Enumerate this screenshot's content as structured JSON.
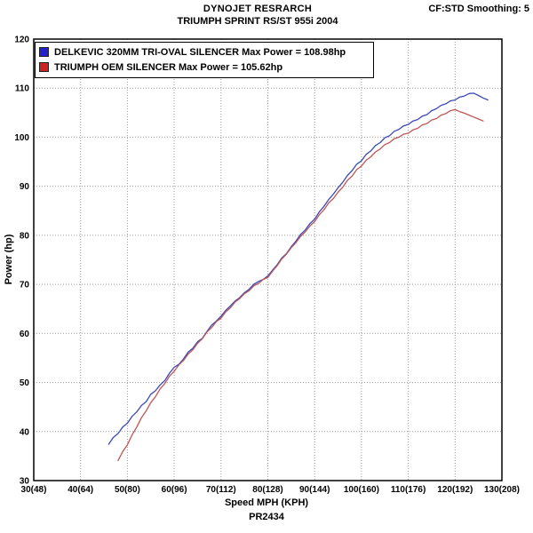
{
  "header": {
    "title_line1": "DYNOJET RESRARCH",
    "title_line2": "TRIUMPH SPRINT RS/ST 955i 2004",
    "smoothing_label": "CF:STD Smoothing: 5"
  },
  "footer": {
    "xaxis_title": "Speed MPH (KPH)",
    "run_id": "PR2434"
  },
  "chart_data": {
    "type": "line",
    "title": "TRIUMPH SPRINT RS/ST 955i 2004",
    "xlabel": "Speed MPH (KPH)",
    "ylabel": "Power (hp)",
    "xlim": [
      30,
      130
    ],
    "ylim": [
      30,
      120
    ],
    "grid": "dotted",
    "legend_position": "top-left",
    "x_grid": [
      30,
      40,
      50,
      60,
      70,
      80,
      90,
      100,
      110,
      120,
      130
    ],
    "x_tick_labels": [
      "30(48)",
      "40(64)",
      "50(80)",
      "60(96)",
      "70(112)",
      "80(128)",
      "90(144)",
      "100(160)",
      "110(176)",
      "120(192)",
      "130(208)"
    ],
    "y_grid": [
      30,
      40,
      50,
      60,
      70,
      80,
      90,
      100,
      110,
      120
    ],
    "y_tick_labels": [
      "30",
      "40",
      "50",
      "60",
      "70",
      "80",
      "90",
      "100",
      "110",
      "120"
    ],
    "series": [
      {
        "name": "DELKEVIC 320MM TRI-OVAL SILENCER",
        "legend_label": "DELKEVIC 320MM TRI-OVAL SILENCER  Max Power = 108.98hp",
        "max_power_hp": 108.98,
        "color": "#3a49b8",
        "swatch_color": "#2222cc",
        "points": [
          [
            46,
            37.4
          ],
          [
            47,
            38.8
          ],
          [
            48,
            39.6
          ],
          [
            49,
            40.9
          ],
          [
            50,
            41.7
          ],
          [
            51,
            43.1
          ],
          [
            52,
            44.0
          ],
          [
            53,
            45.3
          ],
          [
            54,
            46.1
          ],
          [
            55,
            47.6
          ],
          [
            56,
            48.3
          ],
          [
            57,
            49.5
          ],
          [
            58,
            50.4
          ],
          [
            59,
            51.9
          ],
          [
            60,
            53.1
          ],
          [
            61,
            53.7
          ],
          [
            62,
            54.8
          ],
          [
            63,
            56.2
          ],
          [
            64,
            57.0
          ],
          [
            65,
            58.3
          ],
          [
            66,
            59.0
          ],
          [
            67,
            60.4
          ],
          [
            68,
            61.7
          ],
          [
            69,
            62.5
          ],
          [
            70,
            63.5
          ],
          [
            71,
            64.7
          ],
          [
            72,
            65.6
          ],
          [
            73,
            66.6
          ],
          [
            74,
            67.3
          ],
          [
            75,
            68.3
          ],
          [
            76,
            69.0
          ],
          [
            77,
            70.0
          ],
          [
            78,
            70.6
          ],
          [
            79,
            71.0
          ],
          [
            80,
            71.7
          ],
          [
            81,
            72.9
          ],
          [
            82,
            74.0
          ],
          [
            83,
            75.4
          ],
          [
            84,
            76.3
          ],
          [
            85,
            77.7
          ],
          [
            86,
            78.8
          ],
          [
            87,
            80.2
          ],
          [
            88,
            81.1
          ],
          [
            89,
            82.4
          ],
          [
            90,
            83.3
          ],
          [
            91,
            84.8
          ],
          [
            92,
            85.9
          ],
          [
            93,
            87.3
          ],
          [
            94,
            88.4
          ],
          [
            95,
            89.7
          ],
          [
            96,
            90.8
          ],
          [
            97,
            92.2
          ],
          [
            98,
            93.2
          ],
          [
            99,
            94.5
          ],
          [
            100,
            95.2
          ],
          [
            101,
            96.5
          ],
          [
            102,
            97.2
          ],
          [
            103,
            98.3
          ],
          [
            104,
            98.9
          ],
          [
            105,
            99.9
          ],
          [
            106,
            100.3
          ],
          [
            107,
            101.2
          ],
          [
            108,
            101.6
          ],
          [
            109,
            102.3
          ],
          [
            110,
            102.6
          ],
          [
            111,
            103.3
          ],
          [
            112,
            103.6
          ],
          [
            113,
            104.3
          ],
          [
            114,
            104.6
          ],
          [
            115,
            105.4
          ],
          [
            116,
            105.8
          ],
          [
            117,
            106.5
          ],
          [
            118,
            106.8
          ],
          [
            119,
            107.4
          ],
          [
            120,
            107.6
          ],
          [
            121,
            108.2
          ],
          [
            122,
            108.4
          ],
          [
            123,
            108.9
          ],
          [
            124,
            108.98
          ],
          [
            125,
            108.5
          ],
          [
            126,
            108.0
          ],
          [
            127,
            107.6
          ]
        ]
      },
      {
        "name": "TRIUMPH OEM SILENCER",
        "legend_label": "TRIUMPH OEM SILENCER Max Power = 105.62hp",
        "max_power_hp": 105.62,
        "color": "#c05555",
        "swatch_color": "#cc2222",
        "points": [
          [
            48,
            34.1
          ],
          [
            49,
            35.9
          ],
          [
            50,
            37.3
          ],
          [
            51,
            39.3
          ],
          [
            52,
            40.9
          ],
          [
            53,
            42.8
          ],
          [
            54,
            44.2
          ],
          [
            55,
            45.9
          ],
          [
            56,
            47.1
          ],
          [
            57,
            48.7
          ],
          [
            58,
            49.8
          ],
          [
            59,
            51.3
          ],
          [
            60,
            52.3
          ],
          [
            61,
            53.6
          ],
          [
            62,
            54.5
          ],
          [
            63,
            55.8
          ],
          [
            64,
            56.7
          ],
          [
            65,
            58.0
          ],
          [
            66,
            58.9
          ],
          [
            67,
            60.3
          ],
          [
            68,
            61.2
          ],
          [
            69,
            62.4
          ],
          [
            70,
            63.1
          ],
          [
            71,
            64.4
          ],
          [
            72,
            65.2
          ],
          [
            73,
            66.4
          ],
          [
            74,
            67.1
          ],
          [
            75,
            68.1
          ],
          [
            76,
            68.7
          ],
          [
            77,
            69.7
          ],
          [
            78,
            70.2
          ],
          [
            79,
            71.0
          ],
          [
            80,
            71.4
          ],
          [
            81,
            72.7
          ],
          [
            82,
            73.8
          ],
          [
            83,
            75.2
          ],
          [
            84,
            76.2
          ],
          [
            85,
            77.5
          ],
          [
            86,
            78.5
          ],
          [
            87,
            79.8
          ],
          [
            88,
            80.7
          ],
          [
            89,
            81.9
          ],
          [
            90,
            82.8
          ],
          [
            91,
            84.2
          ],
          [
            92,
            85.2
          ],
          [
            93,
            86.6
          ],
          [
            94,
            87.5
          ],
          [
            95,
            88.8
          ],
          [
            96,
            89.8
          ],
          [
            97,
            91.2
          ],
          [
            98,
            92.1
          ],
          [
            99,
            93.4
          ],
          [
            100,
            94.1
          ],
          [
            101,
            95.3
          ],
          [
            102,
            96.0
          ],
          [
            103,
            97.0
          ],
          [
            104,
            97.6
          ],
          [
            105,
            98.5
          ],
          [
            106,
            98.9
          ],
          [
            107,
            99.7
          ],
          [
            108,
            100.0
          ],
          [
            109,
            100.6
          ],
          [
            110,
            100.8
          ],
          [
            111,
            101.5
          ],
          [
            112,
            101.8
          ],
          [
            113,
            102.5
          ],
          [
            114,
            102.8
          ],
          [
            115,
            103.5
          ],
          [
            116,
            103.8
          ],
          [
            117,
            104.5
          ],
          [
            118,
            104.8
          ],
          [
            119,
            105.4
          ],
          [
            120,
            105.62
          ],
          [
            121,
            105.2
          ],
          [
            122,
            104.9
          ],
          [
            123,
            104.5
          ],
          [
            124,
            104.1
          ],
          [
            125,
            103.7
          ],
          [
            126,
            103.3
          ]
        ]
      }
    ]
  }
}
